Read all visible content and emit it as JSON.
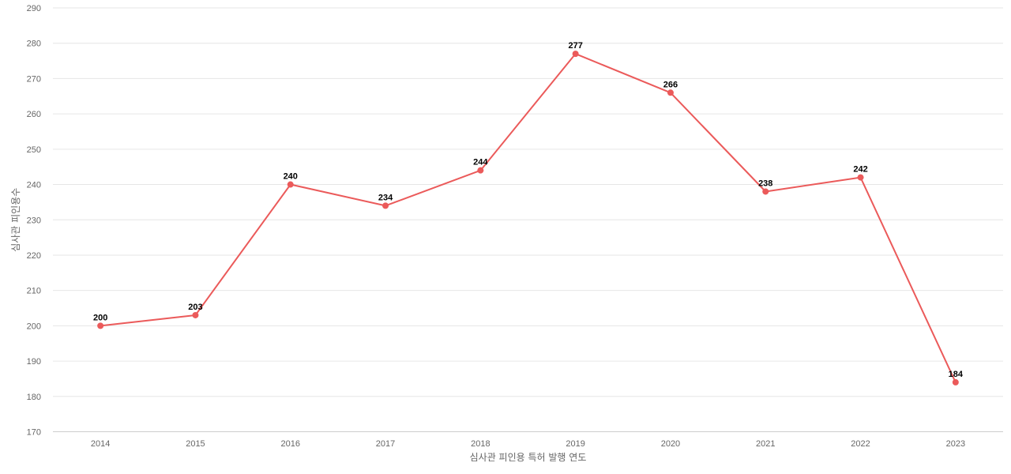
{
  "chart_data": {
    "type": "line",
    "title": "",
    "xlabel": "심사관 피인용 특허 발행 연도",
    "ylabel": "심사관 피인용수",
    "categories": [
      "2014",
      "2015",
      "2016",
      "2017",
      "2018",
      "2019",
      "2020",
      "2021",
      "2022",
      "2023"
    ],
    "series": [
      {
        "values": [
          200,
          203,
          240,
          234,
          244,
          277,
          266,
          238,
          242,
          184
        ],
        "color": "#eb5a5a"
      }
    ],
    "ylim": [
      170,
      290
    ],
    "yticks": [
      170,
      180,
      190,
      200,
      210,
      220,
      230,
      240,
      250,
      260,
      270,
      280,
      290
    ],
    "grid": true,
    "legend": "none",
    "data_labels": true
  }
}
